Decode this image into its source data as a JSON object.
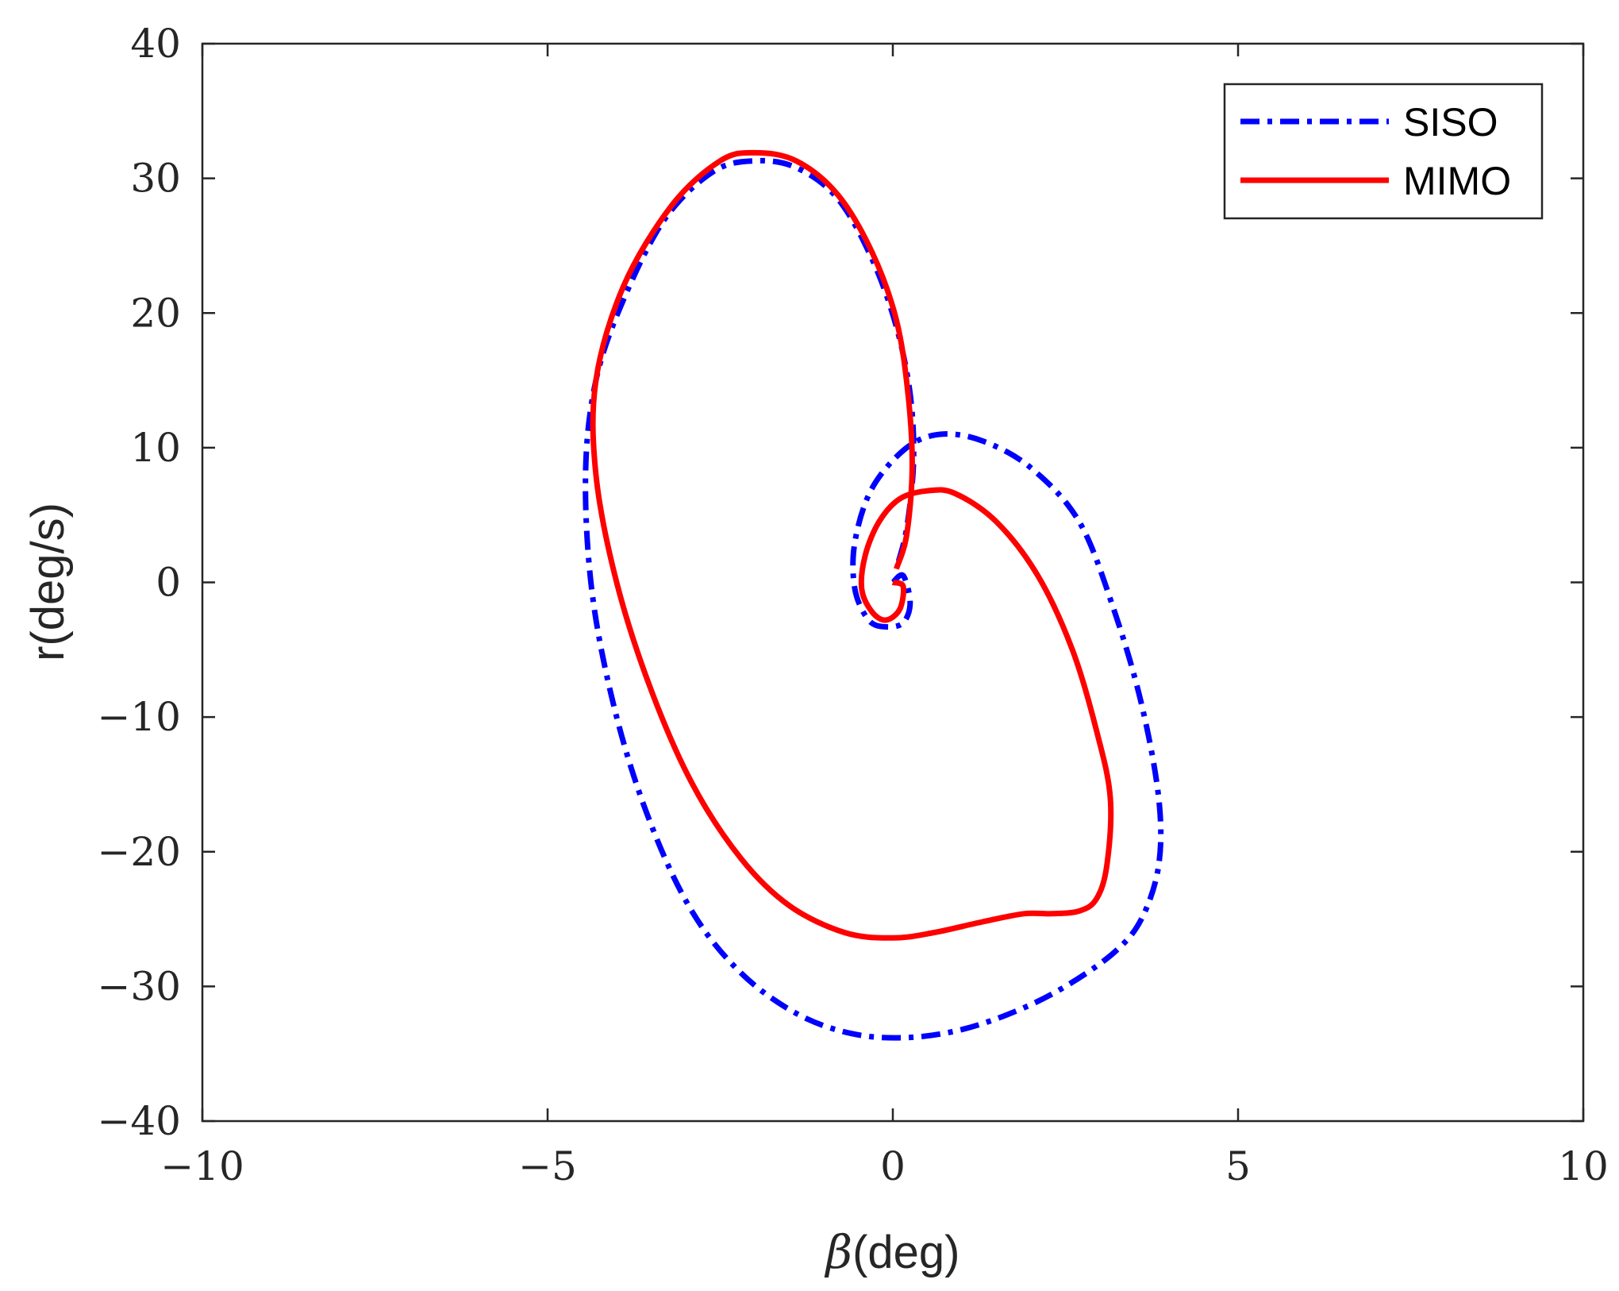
{
  "chart_data": {
    "type": "line",
    "title": "",
    "xlabel_symbol": "β",
    "xlabel_unit": "(deg)",
    "ylabel": "r(deg/s)",
    "xlim": [
      -10,
      10
    ],
    "ylim": [
      -40,
      40
    ],
    "xticks": [
      -10,
      -5,
      0,
      5,
      10
    ],
    "yticks": [
      -40,
      -30,
      -20,
      -10,
      0,
      10,
      20,
      30,
      40
    ],
    "xtick_labels": [
      "−10",
      "−5",
      "0",
      "5",
      "10"
    ],
    "ytick_labels": [
      "−40",
      "−30",
      "−20",
      "−10",
      "0",
      "10",
      "20",
      "30",
      "40"
    ],
    "grid": false,
    "box": true,
    "legend_position": "top-right",
    "series": [
      {
        "name": "SISO",
        "color": "#0000ff",
        "line_style": "dash-dot",
        "points": [
          [
            0.0,
            0.0
          ],
          [
            0.15,
            0.5
          ],
          [
            0.25,
            -1.5
          ],
          [
            0.15,
            -3.0
          ],
          [
            -0.1,
            -3.3
          ],
          [
            -0.35,
            -2.8
          ],
          [
            -0.55,
            -0.5
          ],
          [
            -0.55,
            3.0
          ],
          [
            -0.3,
            7.0
          ],
          [
            0.2,
            10.0
          ],
          [
            0.7,
            11.0
          ],
          [
            1.3,
            10.5
          ],
          [
            2.0,
            8.5
          ],
          [
            2.7,
            4.5
          ],
          [
            3.2,
            -2.0
          ],
          [
            3.6,
            -9.0
          ],
          [
            3.85,
            -16.0
          ],
          [
            3.85,
            -21.0
          ],
          [
            3.6,
            -25.0
          ],
          [
            3.2,
            -27.5
          ],
          [
            2.5,
            -30.0
          ],
          [
            1.8,
            -31.8
          ],
          [
            1.0,
            -33.2
          ],
          [
            0.2,
            -33.8
          ],
          [
            -0.6,
            -33.5
          ],
          [
            -1.4,
            -32.0
          ],
          [
            -2.2,
            -29.0
          ],
          [
            -2.9,
            -24.5
          ],
          [
            -3.5,
            -18.0
          ],
          [
            -4.0,
            -10.0
          ],
          [
            -4.35,
            -1.0
          ],
          [
            -4.45,
            8.0
          ],
          [
            -4.3,
            15.0
          ],
          [
            -3.9,
            21.0
          ],
          [
            -3.3,
            27.0
          ],
          [
            -2.6,
            30.5
          ],
          [
            -2.0,
            31.3
          ],
          [
            -1.4,
            30.8
          ],
          [
            -0.8,
            28.5
          ],
          [
            -0.3,
            24.0
          ],
          [
            0.05,
            19.0
          ],
          [
            0.25,
            14.0
          ],
          [
            0.3,
            9.0
          ],
          [
            0.2,
            4.0
          ],
          [
            0.05,
            1.0
          ]
        ]
      },
      {
        "name": "MIMO",
        "color": "#ff0000",
        "line_style": "solid",
        "points": [
          [
            0.0,
            0.0
          ],
          [
            0.15,
            -0.3
          ],
          [
            0.1,
            -2.0
          ],
          [
            -0.1,
            -2.8
          ],
          [
            -0.3,
            -2.2
          ],
          [
            -0.45,
            -0.5
          ],
          [
            -0.4,
            2.0
          ],
          [
            -0.2,
            4.5
          ],
          [
            0.1,
            6.2
          ],
          [
            0.5,
            6.8
          ],
          [
            0.9,
            6.6
          ],
          [
            1.5,
            4.5
          ],
          [
            2.1,
            0.5
          ],
          [
            2.6,
            -5.0
          ],
          [
            2.95,
            -11.0
          ],
          [
            3.15,
            -16.0
          ],
          [
            3.1,
            -21.0
          ],
          [
            2.95,
            -23.5
          ],
          [
            2.7,
            -24.4
          ],
          [
            2.3,
            -24.6
          ],
          [
            1.9,
            -24.6
          ],
          [
            1.3,
            -25.2
          ],
          [
            0.6,
            -26.0
          ],
          [
            0.0,
            -26.4
          ],
          [
            -0.7,
            -26.0
          ],
          [
            -1.5,
            -24.0
          ],
          [
            -2.2,
            -20.5
          ],
          [
            -2.9,
            -15.0
          ],
          [
            -3.5,
            -8.0
          ],
          [
            -4.0,
            0.0
          ],
          [
            -4.3,
            8.0
          ],
          [
            -4.3,
            15.0
          ],
          [
            -3.9,
            22.0
          ],
          [
            -3.2,
            28.0
          ],
          [
            -2.5,
            31.3
          ],
          [
            -2.0,
            31.9
          ],
          [
            -1.4,
            31.3
          ],
          [
            -0.8,
            28.8
          ],
          [
            -0.3,
            24.5
          ],
          [
            0.05,
            19.5
          ],
          [
            0.22,
            14.0
          ],
          [
            0.28,
            8.5
          ],
          [
            0.2,
            3.5
          ],
          [
            0.05,
            1.0
          ]
        ]
      }
    ]
  }
}
